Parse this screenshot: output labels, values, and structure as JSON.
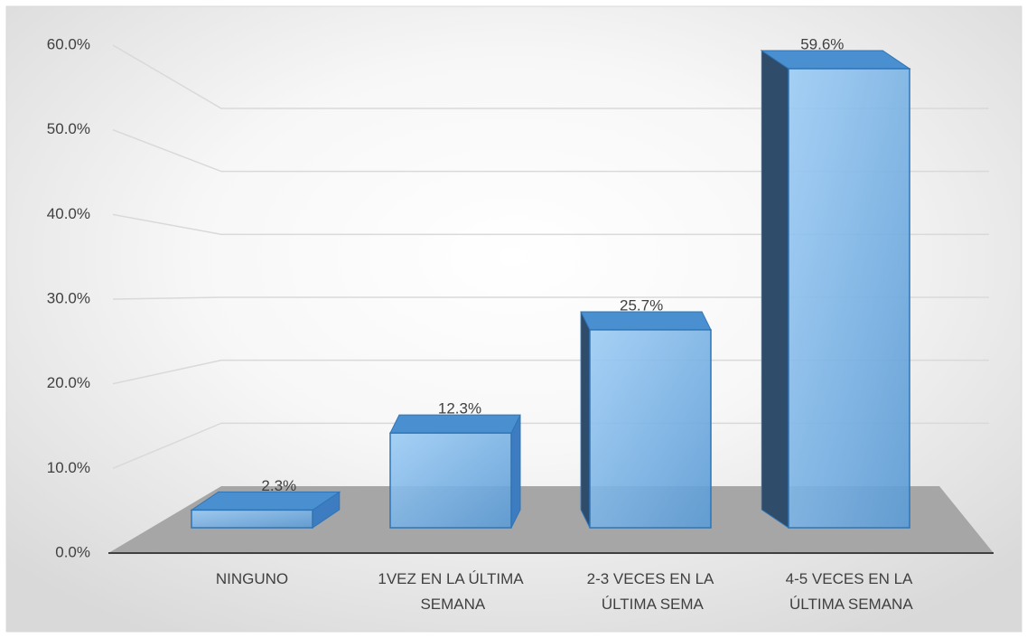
{
  "chart_data": {
    "type": "bar3d",
    "categories": [
      "NINGUNO",
      "1VEZ EN LA ÚLTIMA SEMANA",
      "2-3 VECES EN LA ÚLTIMA SEMA",
      "4-5 VECES EN LA ÚLTIMA SEMANA"
    ],
    "values": [
      2.3,
      12.3,
      25.7,
      59.6
    ],
    "value_labels": [
      "2.3%",
      "12.3%",
      "25.7%",
      "59.6%"
    ],
    "color": "#5b9bd5",
    "ylim": [
      0,
      60
    ],
    "yticks": [
      {
        "value": 0,
        "label": "0.0%"
      },
      {
        "value": 10,
        "label": "10.0%"
      },
      {
        "value": 20,
        "label": "20.0%"
      },
      {
        "value": 30,
        "label": "30.0%"
      },
      {
        "value": 40,
        "label": "40.0%"
      },
      {
        "value": 50,
        "label": "50.0%"
      },
      {
        "value": 60,
        "label": "60.0%"
      }
    ],
    "grid": true
  }
}
